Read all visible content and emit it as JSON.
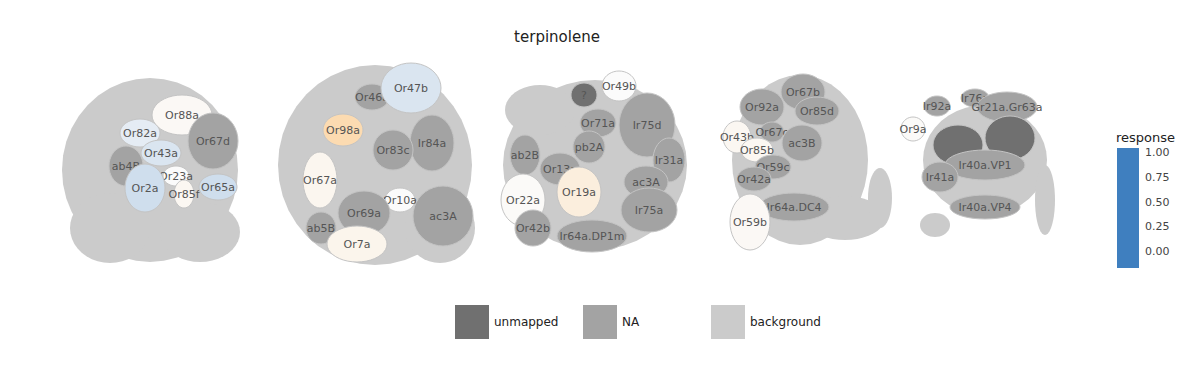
{
  "chart_data": {
    "type": "glomerulus_map",
    "title": "terpinolene",
    "panels": [
      [
        {
          "label": "Or88a",
          "response": 0.02
        },
        {
          "label": "Or82a",
          "response": -0.02
        },
        {
          "label": "Or67d",
          "response": null,
          "status": "NA"
        },
        {
          "label": "Or43a",
          "response": -0.03
        },
        {
          "label": "ab4B",
          "response": null,
          "status": "NA"
        },
        {
          "label": "Or23a",
          "response": 0.0
        },
        {
          "label": "Or2a",
          "response": -0.04
        },
        {
          "label": "Or85f",
          "response": 0.03
        },
        {
          "label": "Or65a",
          "response": -0.04
        }
      ],
      [
        {
          "label": "Or46a",
          "response": null,
          "status": "NA"
        },
        {
          "label": "Or47b",
          "response": -0.03
        },
        {
          "label": "Or98a",
          "response": 0.25
        },
        {
          "label": "Ir84a",
          "response": null,
          "status": "NA"
        },
        {
          "label": "Or83c",
          "response": null,
          "status": "NA"
        },
        {
          "label": "Or67a",
          "response": 0.04
        },
        {
          "label": "Or10a",
          "response": 0.0
        },
        {
          "label": "Or69a",
          "response": null,
          "status": "NA"
        },
        {
          "label": "ac3A",
          "response": null,
          "status": "NA"
        },
        {
          "label": "ab5B",
          "response": null,
          "status": "NA"
        },
        {
          "label": "Or7a",
          "response": 0.05
        }
      ],
      [
        {
          "label": "?",
          "response": null,
          "status": "unmapped"
        },
        {
          "label": "Or49b",
          "response": 0.0
        },
        {
          "label": "Or71a",
          "response": null,
          "status": "NA"
        },
        {
          "label": "Ir75d",
          "response": null,
          "status": "NA"
        },
        {
          "label": "ab2B",
          "response": null,
          "status": "NA"
        },
        {
          "label": "pb2A",
          "response": null,
          "status": "NA"
        },
        {
          "label": "Ir31a",
          "response": null,
          "status": "NA"
        },
        {
          "label": "Or13a",
          "response": null,
          "status": "NA"
        },
        {
          "label": "Or19a",
          "response": 0.1
        },
        {
          "label": "ac3A",
          "response": null,
          "status": "NA"
        },
        {
          "label": "Or22a",
          "response": 0.01
        },
        {
          "label": "Ir75a",
          "response": null,
          "status": "NA"
        },
        {
          "label": "Or42b",
          "response": null,
          "status": "NA"
        },
        {
          "label": "Ir64a.DP1m",
          "response": null,
          "status": "NA"
        }
      ],
      [
        {
          "label": "Or67b",
          "response": null,
          "status": "NA"
        },
        {
          "label": "Or92a",
          "response": null,
          "status": "NA"
        },
        {
          "label": "Or85d",
          "response": null,
          "status": "NA"
        },
        {
          "label": "Or43b",
          "response": 0.03
        },
        {
          "label": "Or67c",
          "response": null,
          "status": "NA"
        },
        {
          "label": "ac3B",
          "response": null,
          "status": "NA"
        },
        {
          "label": "Or85b",
          "response": 0.03
        },
        {
          "label": "Or59c",
          "response": null,
          "status": "NA"
        },
        {
          "label": "Or42a",
          "response": null,
          "status": "NA"
        },
        {
          "label": "Ir64a.DC4",
          "response": null,
          "status": "NA"
        },
        {
          "label": "Or59b",
          "response": 0.02
        }
      ],
      [
        {
          "label": "Ir76a",
          "response": null,
          "status": "NA"
        },
        {
          "label": "Ir92a",
          "response": null,
          "status": "NA"
        },
        {
          "label": "Gr21a.Gr63a",
          "response": null,
          "status": "NA"
        },
        {
          "label": "Or9a",
          "response": 0.01
        },
        {
          "label": null,
          "response": null,
          "status": "unmapped"
        },
        {
          "label": null,
          "response": null,
          "status": "unmapped"
        },
        {
          "label": "Ir40a.VP1",
          "response": null,
          "status": "NA"
        },
        {
          "label": "Ir41a",
          "response": null,
          "status": "NA"
        },
        {
          "label": "Ir40a.VP4",
          "response": null,
          "status": "NA"
        }
      ]
    ],
    "colorbar": {
      "title": "response",
      "range": [
        -0.17,
        1.05
      ],
      "ticks": [
        {
          "value": 0,
          "label": "0.00"
        },
        {
          "value": 0.25,
          "label": "0.25"
        },
        {
          "value": 0.5,
          "label": "0.50"
        },
        {
          "value": 0.75,
          "label": "0.75"
        },
        {
          "value": 1,
          "label": "1.00"
        }
      ]
    },
    "legend_items": [
      {
        "name": "unmapped",
        "color": "#707070"
      },
      {
        "name": "NA",
        "color": "#a3a3a3"
      },
      {
        "name": "background",
        "color": "#cbcbcb"
      }
    ]
  }
}
